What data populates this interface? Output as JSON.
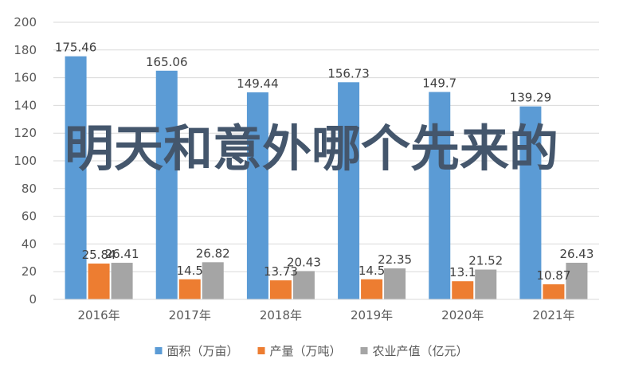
{
  "overlay_text": "明天和意外哪个先来的",
  "chart_data": {
    "type": "bar",
    "categories": [
      "2016年",
      "2017年",
      "2018年",
      "2019年",
      "2020年",
      "2021年"
    ],
    "series": [
      {
        "name": "面积（万亩）",
        "color": "#5b9bd5",
        "values": [
          175.46,
          165.06,
          149.44,
          156.73,
          149.7,
          139.29
        ]
      },
      {
        "name": "产量（万吨）",
        "color": "#ed7d31",
        "values": [
          25.84,
          14.5,
          13.73,
          14.5,
          13.1,
          10.87
        ]
      },
      {
        "name": "农业产值（亿元）",
        "color": "#a5a5a5",
        "values": [
          26.41,
          26.82,
          20.43,
          22.35,
          21.52,
          26.43
        ]
      }
    ],
    "value_labels": [
      [
        "175.46",
        "165.06",
        "149.44",
        "156.73",
        "149.7",
        "139.29"
      ],
      [
        "25.84",
        "14.5",
        "13.73",
        "14.5",
        "13.1",
        "10.87"
      ],
      [
        "26.41",
        "26.82",
        "20.43",
        "22.35",
        "21.52",
        "26.43"
      ]
    ],
    "y_ticks": [
      "0",
      "20",
      "40",
      "60",
      "80",
      "100",
      "120",
      "140",
      "160",
      "180",
      "200"
    ],
    "ylim": [
      0,
      200
    ],
    "grid": true,
    "legend_position": "bottom"
  }
}
